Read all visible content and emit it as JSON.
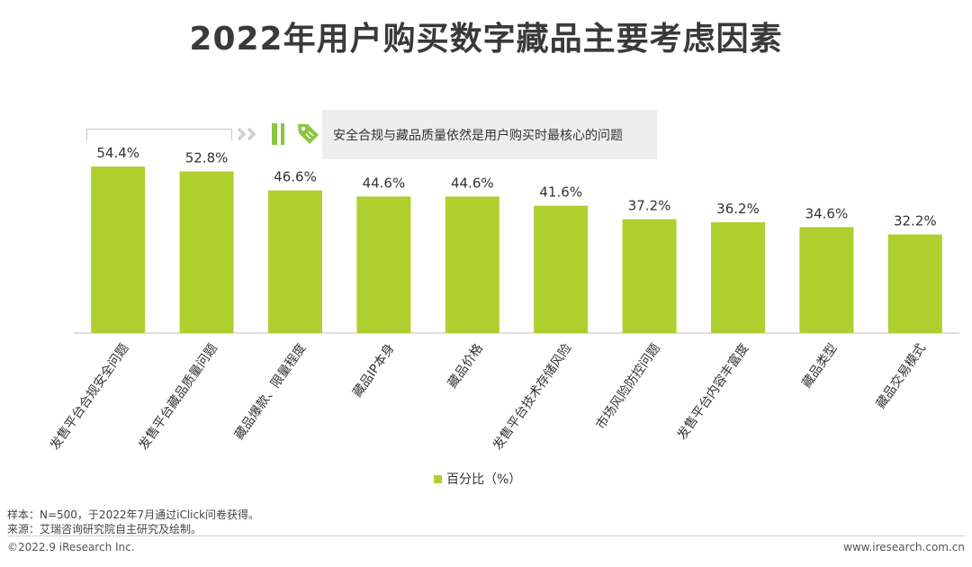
{
  "title": "2022年用户购买数字藏品主要考虑因素",
  "callout": {
    "text": "安全合规与藏品质量依然是用户购买时最核心的问题",
    "icons": [
      "arrow-right-icon",
      "bars-icon",
      "tag-icon"
    ]
  },
  "legend": {
    "label": "百分比（%）"
  },
  "footnotes": {
    "sample": "样本：N=500，于2022年7月通过iClick问卷获得。",
    "source": "来源：艾瑞咨询研究院自主研究及绘制。"
  },
  "footer": {
    "copyright": "©2022.9 iResearch Inc.",
    "website": "www.iresearch.com.cn"
  },
  "colors": {
    "bar": "#aecf2e",
    "axis": "#bfbfbf",
    "callout_bg": "#eeeeee",
    "icon_green": "#8cc63f"
  },
  "chart_data": {
    "type": "bar",
    "categories": [
      "发售平台合规安全问题",
      "发售平台藏品质量问题",
      "藏品爆款、限量程度",
      "藏品IP本身",
      "藏品价格",
      "发售平台技术存储风险",
      "市场风险防控问题",
      "发售平台内容丰富度",
      "藏品类型",
      "藏品交易模式"
    ],
    "values": [
      54.4,
      52.8,
      46.6,
      44.6,
      44.6,
      41.6,
      37.2,
      36.2,
      34.6,
      32.2
    ],
    "value_labels": [
      "54.4%",
      "52.8%",
      "46.6%",
      "44.6%",
      "44.6%",
      "41.6%",
      "37.2%",
      "36.2%",
      "34.6%",
      "32.2%"
    ],
    "ylim": [
      0,
      60
    ],
    "legend_position": "bottom",
    "grid": false
  }
}
